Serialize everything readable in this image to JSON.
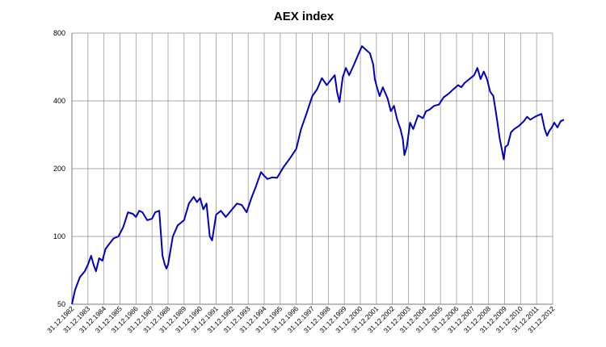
{
  "chart_data": {
    "type": "line",
    "title": "AEX index",
    "xlabel": "",
    "ylabel": "",
    "y_scale": "log",
    "ylim": [
      50,
      800
    ],
    "y_ticks": [
      {
        "value": 50,
        "label": "50"
      },
      {
        "value": 100,
        "label": "100"
      },
      {
        "value": 200,
        "label": "200"
      },
      {
        "value": 400,
        "label": "400"
      },
      {
        "value": 800,
        "label": "800"
      }
    ],
    "x_range": [
      1982.0,
      2012.0
    ],
    "x_tick_labels": [
      "31.12.1982",
      "31.12.1983",
      "31.12.1984",
      "31.12.1985",
      "31.12.1986",
      "31.12.1987",
      "31.12.1988",
      "31.12.1989",
      "31.12.1990",
      "31.12.1991",
      "31.12.1992",
      "31.12.1993",
      "31.12.1994",
      "31.12.1995",
      "31.12.1996",
      "31.12.1997",
      "31.12.1998",
      "31.12.1999",
      "31.12.2000",
      "31.12.2001",
      "31.12.2002",
      "31.12.2003",
      "31.12.2004",
      "31.12.2005",
      "31.12.2006",
      "31.12.2007",
      "31.12.2008",
      "31.12.2009",
      "31.12.2010",
      "31.12.2011",
      "31.12.2012"
    ],
    "grid": true,
    "series": [
      {
        "name": "AEX index",
        "color": "#0000c0",
        "x": [
          1982.0,
          1982.2,
          1982.5,
          1982.8,
          1983.0,
          1983.2,
          1983.35,
          1983.5,
          1983.7,
          1983.9,
          1984.1,
          1984.3,
          1984.6,
          1984.9,
          1985.2,
          1985.5,
          1985.8,
          1986.0,
          1986.2,
          1986.4,
          1986.7,
          1987.0,
          1987.2,
          1987.45,
          1987.65,
          1987.8,
          1987.9,
          1988.0,
          1988.3,
          1988.6,
          1989.0,
          1989.3,
          1989.6,
          1989.8,
          1990.0,
          1990.2,
          1990.4,
          1990.6,
          1990.75,
          1991.0,
          1991.3,
          1991.6,
          1992.0,
          1992.3,
          1992.6,
          1992.9,
          1993.2,
          1993.5,
          1993.8,
          1994.0,
          1994.2,
          1994.5,
          1994.8,
          1995.2,
          1995.6,
          1996.0,
          1996.3,
          1996.6,
          1997.0,
          1997.3,
          1997.6,
          1997.9,
          1998.2,
          1998.4,
          1998.55,
          1998.7,
          1998.8,
          1998.9,
          1999.1,
          1999.3,
          1999.6,
          1999.9,
          2000.1,
          2000.3,
          2000.6,
          2000.8,
          2000.9,
          2001.0,
          2001.2,
          2001.4,
          2001.7,
          2001.9,
          2002.1,
          2002.3,
          2002.5,
          2002.65,
          2002.75,
          2002.9,
          2003.1,
          2003.3,
          2003.6,
          2003.9,
          2004.1,
          2004.3,
          2004.6,
          2004.9,
          2005.2,
          2005.5,
          2005.8,
          2006.1,
          2006.3,
          2006.5,
          2006.8,
          2007.1,
          2007.3,
          2007.5,
          2007.7,
          2007.9,
          2008.1,
          2008.3,
          2008.5,
          2008.7,
          2008.85,
          2008.95,
          2009.05,
          2009.2,
          2009.4,
          2009.6,
          2009.9,
          2010.2,
          2010.4,
          2010.6,
          2010.9,
          2011.1,
          2011.3,
          2011.5,
          2011.65,
          2011.8,
          2011.95,
          2012.1,
          2012.3,
          2012.5,
          2012.7
        ],
        "values": [
          50,
          58,
          66,
          70,
          75,
          82,
          75,
          70,
          80,
          78,
          88,
          92,
          98,
          100,
          110,
          128,
          126,
          122,
          130,
          128,
          118,
          120,
          128,
          130,
          82,
          75,
          72,
          75,
          100,
          112,
          118,
          140,
          150,
          142,
          148,
          132,
          140,
          100,
          96,
          125,
          130,
          122,
          132,
          140,
          138,
          128,
          148,
          168,
          193,
          186,
          180,
          183,
          182,
          203,
          222,
          245,
          300,
          345,
          420,
          450,
          505,
          470,
          500,
          520,
          438,
          395,
          450,
          510,
          560,
          520,
          580,
          650,
          700,
          680,
          650,
          580,
          500,
          470,
          420,
          460,
          410,
          360,
          380,
          330,
          300,
          270,
          230,
          250,
          320,
          300,
          345,
          335,
          360,
          365,
          380,
          385,
          415,
          430,
          450,
          470,
          460,
          480,
          500,
          520,
          560,
          500,
          540,
          500,
          440,
          420,
          340,
          270,
          240,
          220,
          250,
          255,
          290,
          300,
          310,
          325,
          340,
          330,
          340,
          345,
          350,
          300,
          280,
          295,
          305,
          320,
          305,
          325,
          330
        ]
      }
    ]
  }
}
